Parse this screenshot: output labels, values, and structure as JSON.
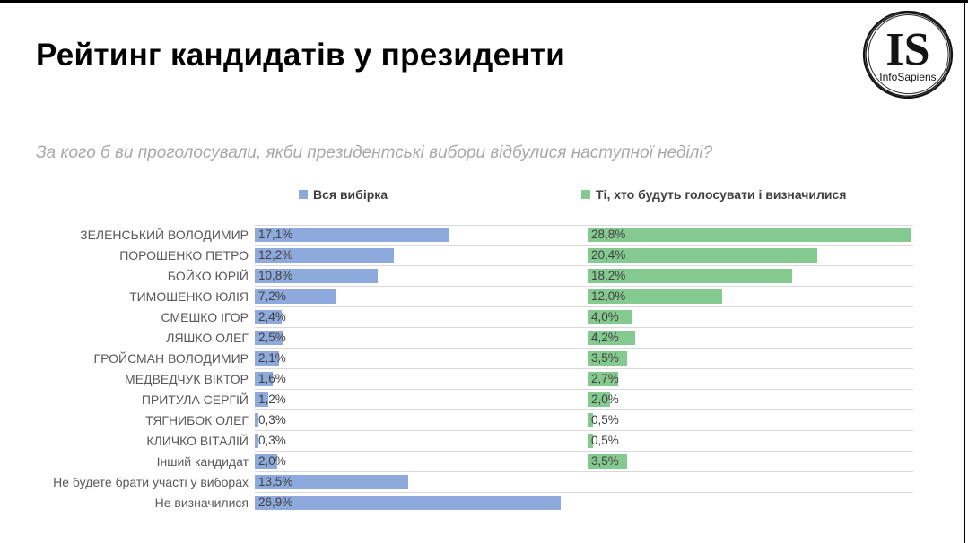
{
  "page": {
    "title": "Рейтинг кандидатів у президенти",
    "subtitle": "За кого б ви проголосували, якби президентські вибори відбулися наступної неділі?"
  },
  "logo": {
    "monogram": "IS",
    "name": "InfoSapiens"
  },
  "legend": {
    "items": [
      {
        "label": "Вся вибірка",
        "color": "#8EA9DB"
      },
      {
        "label": "Ті, хто будуть голосувати і визначилися",
        "color": "#84C98F"
      }
    ]
  },
  "chart_data": {
    "type": "bar",
    "orientation": "horizontal",
    "title": "Рейтинг кандидатів у президенти",
    "question": "За кого б ви проголосували, якби президентські вибори відбулися наступної неділі?",
    "categories": [
      "ЗЕЛЕНСЬКИЙ ВОЛОДИМИР",
      "ПОРОШЕНКО ПЕТРО",
      "БОЙКО ЮРІЙ",
      "ТИМОШЕНКО ЮЛІЯ",
      "СМЕШКО ІГОР",
      "ЛЯШКО ОЛЕГ",
      "ГРОЙСМАН ВОЛОДИМИР",
      "МЕДВЕДЧУК ВІКТОР",
      "ПРИТУЛА СЕРГІЙ",
      "ТЯГНИБОК ОЛЕГ",
      "КЛИЧКО ВІТАЛІЙ",
      "Інший кандидат",
      "Не будете брати участі у виборах",
      "Не визначилися"
    ],
    "series": [
      {
        "name": "Вся вибірка",
        "color": "#8EA9DB",
        "values": [
          17.1,
          12.2,
          10.8,
          7.2,
          2.4,
          2.5,
          2.1,
          1.6,
          1.2,
          0.3,
          0.3,
          2.0,
          13.5,
          26.9
        ],
        "labels": [
          "17,1%",
          "12,2%",
          "10,8%",
          "7,2%",
          "2,4%",
          "2,5%",
          "2,1%",
          "1,6%",
          "1,2%",
          "0,3%",
          "0,3%",
          "2,0%",
          "13,5%",
          "26,9%"
        ]
      },
      {
        "name": "Ті, хто будуть голосувати і визначилися",
        "color": "#84C98F",
        "values": [
          28.8,
          20.4,
          18.2,
          12.0,
          4.0,
          4.2,
          3.5,
          2.7,
          2.0,
          0.5,
          0.5,
          3.5,
          null,
          null
        ],
        "labels": [
          "28,8%",
          "20,4%",
          "18,2%",
          "12,0%",
          "4,0%",
          "4,2%",
          "3,5%",
          "2,7%",
          "2,0%",
          "0,5%",
          "0,5%",
          "3,5%",
          "",
          ""
        ]
      }
    ],
    "xlim": [
      0,
      29
    ],
    "grid": "row-separator-lines",
    "legend_position": "top"
  }
}
